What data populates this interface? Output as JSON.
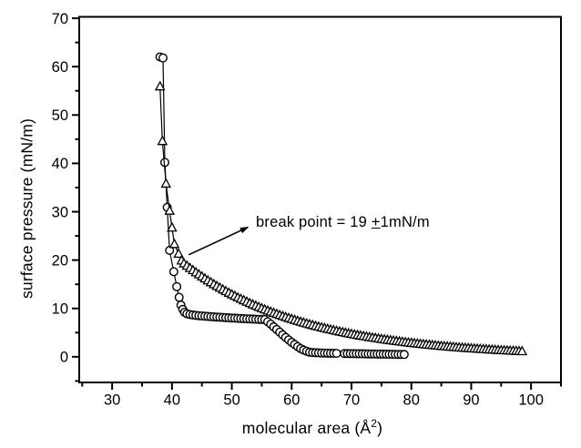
{
  "figure": {
    "background": "#ffffff",
    "ink_color": "#000000"
  },
  "chart_data": {
    "type": "scatter",
    "title": "",
    "xlabel_prefix": "molecular area (Å",
    "xlabel_sup": "2",
    "xlabel_suffix": ")",
    "ylabel": "surface pressure (mN/m)",
    "xlim": [
      24.5,
      105
    ],
    "ylim": [
      -5.3,
      70.3
    ],
    "xticks": [
      30,
      40,
      50,
      60,
      70,
      80,
      90,
      100
    ],
    "yticks": [
      0,
      10,
      20,
      30,
      40,
      50,
      60,
      70
    ],
    "minor_tick_step": 5,
    "grid": false,
    "legend": null,
    "annotation": {
      "display": "break point = 19 ±1mN/m",
      "text_prefix": "break point = 19 ",
      "text_pm": "+",
      "text_suffix": "1mN/m",
      "arrow_from_xy": [
        42.8,
        21.1
      ],
      "arrow_to_xy": [
        52.7,
        26.8
      ]
    },
    "series": [
      {
        "name": "circles-isotherm",
        "marker": "circle",
        "color": "#000000",
        "points": [
          [
            38.0,
            62.0
          ],
          [
            38.5,
            61.8
          ],
          [
            38.8,
            40.2
          ],
          [
            39.2,
            30.9
          ],
          [
            39.6,
            22.0
          ],
          [
            40.3,
            17.6
          ],
          [
            40.8,
            14.5
          ],
          [
            41.2,
            12.3
          ],
          [
            41.5,
            10.7
          ],
          [
            41.8,
            9.8
          ],
          [
            42.1,
            9.2
          ],
          [
            42.5,
            8.9
          ],
          [
            43.0,
            8.75
          ],
          [
            43.5,
            8.65
          ],
          [
            44.0,
            8.57
          ],
          [
            44.5,
            8.5
          ],
          [
            45.0,
            8.45
          ],
          [
            45.5,
            8.4
          ],
          [
            46.0,
            8.35
          ],
          [
            46.5,
            8.3
          ],
          [
            47.0,
            8.26
          ],
          [
            47.5,
            8.22
          ],
          [
            48.0,
            8.18
          ],
          [
            48.5,
            8.14
          ],
          [
            49.0,
            8.1
          ],
          [
            49.5,
            8.06
          ],
          [
            50.0,
            8.02
          ],
          [
            50.5,
            7.99
          ],
          [
            51.0,
            7.95
          ],
          [
            51.5,
            7.92
          ],
          [
            52.0,
            7.89
          ],
          [
            52.5,
            7.86
          ],
          [
            53.0,
            7.83
          ],
          [
            53.5,
            7.8
          ],
          [
            54.0,
            7.77
          ],
          [
            54.5,
            7.74
          ],
          [
            55.0,
            7.72
          ],
          [
            55.5,
            7.7
          ],
          [
            56.0,
            7.25
          ],
          [
            56.5,
            6.75
          ],
          [
            57.0,
            6.2
          ],
          [
            57.5,
            5.65
          ],
          [
            58.0,
            5.1
          ],
          [
            58.5,
            4.55
          ],
          [
            59.0,
            4.0
          ],
          [
            59.5,
            3.5
          ],
          [
            60.0,
            3.0
          ],
          [
            60.5,
            2.55
          ],
          [
            61.0,
            2.1
          ],
          [
            61.5,
            1.7
          ],
          [
            62.0,
            1.4
          ],
          [
            62.5,
            1.15
          ],
          [
            63.0,
            0.95
          ],
          [
            63.5,
            0.88
          ],
          [
            64.0,
            0.84
          ],
          [
            64.5,
            0.81
          ],
          [
            65.0,
            0.79
          ],
          [
            65.5,
            0.77
          ],
          [
            66.0,
            0.75
          ],
          [
            66.5,
            0.73
          ],
          [
            67.0,
            0.72
          ],
          [
            67.5,
            0.71
          ],
          [
            68.8,
            0.68
          ],
          [
            69.3,
            0.67
          ],
          [
            69.8,
            0.66
          ],
          [
            70.3,
            0.65
          ],
          [
            70.8,
            0.64
          ],
          [
            71.3,
            0.63
          ],
          [
            71.8,
            0.62
          ],
          [
            72.3,
            0.61
          ],
          [
            72.8,
            0.6
          ],
          [
            73.3,
            0.59
          ],
          [
            73.8,
            0.58
          ],
          [
            74.3,
            0.57
          ],
          [
            74.8,
            0.56
          ],
          [
            75.3,
            0.55
          ],
          [
            75.8,
            0.54
          ],
          [
            76.3,
            0.53
          ],
          [
            76.8,
            0.52
          ],
          [
            77.3,
            0.51
          ],
          [
            77.8,
            0.5
          ],
          [
            78.3,
            0.49
          ],
          [
            78.8,
            0.48
          ]
        ]
      },
      {
        "name": "triangles-isotherm",
        "marker": "triangle",
        "color": "#000000",
        "points": [
          [
            38.0,
            55.9
          ],
          [
            38.4,
            44.6
          ],
          [
            39.0,
            35.8
          ],
          [
            39.6,
            30.2
          ],
          [
            40.0,
            26.7
          ],
          [
            40.4,
            23.3
          ],
          [
            41.1,
            21.3
          ],
          [
            41.6,
            19.9
          ],
          [
            42.0,
            19.3
          ],
          [
            42.5,
            18.82
          ],
          [
            43.0,
            18.35
          ],
          [
            43.5,
            17.9
          ],
          [
            44.0,
            17.45
          ],
          [
            44.5,
            17.02
          ],
          [
            45.0,
            16.59
          ],
          [
            45.5,
            16.18
          ],
          [
            46.0,
            15.78
          ],
          [
            46.5,
            15.39
          ],
          [
            47.0,
            15.0
          ],
          [
            47.5,
            14.63
          ],
          [
            48.0,
            14.27
          ],
          [
            48.5,
            13.91
          ],
          [
            49.0,
            13.57
          ],
          [
            49.5,
            13.23
          ],
          [
            50.0,
            12.9
          ],
          [
            50.5,
            12.58
          ],
          [
            51.0,
            12.27
          ],
          [
            51.5,
            11.96
          ],
          [
            52.0,
            11.67
          ],
          [
            52.5,
            11.38
          ],
          [
            53.0,
            11.09
          ],
          [
            53.5,
            10.82
          ],
          [
            54.0,
            10.55
          ],
          [
            54.5,
            10.29
          ],
          [
            55.0,
            10.03
          ],
          [
            55.5,
            9.78
          ],
          [
            56.0,
            9.54
          ],
          [
            56.5,
            9.3
          ],
          [
            57.0,
            9.07
          ],
          [
            57.5,
            8.85
          ],
          [
            58.0,
            8.63
          ],
          [
            58.5,
            8.41
          ],
          [
            59.0,
            8.2
          ],
          [
            59.5,
            8.0
          ],
          [
            60.0,
            7.8
          ],
          [
            60.5,
            7.61
          ],
          [
            61.0,
            7.42
          ],
          [
            61.5,
            7.23
          ],
          [
            62.0,
            7.05
          ],
          [
            62.5,
            6.88
          ],
          [
            63.0,
            6.71
          ],
          [
            63.5,
            6.54
          ],
          [
            64.0,
            6.38
          ],
          [
            64.5,
            6.22
          ],
          [
            65.0,
            6.07
          ],
          [
            65.5,
            5.92
          ],
          [
            66.0,
            5.77
          ],
          [
            66.5,
            5.63
          ],
          [
            67.0,
            5.49
          ],
          [
            67.5,
            5.35
          ],
          [
            68.0,
            5.22
          ],
          [
            68.5,
            5.09
          ],
          [
            69.0,
            4.96
          ],
          [
            69.5,
            4.84
          ],
          [
            70.0,
            4.72
          ],
          [
            70.5,
            4.6
          ],
          [
            71.0,
            4.49
          ],
          [
            71.5,
            4.38
          ],
          [
            72.0,
            4.27
          ],
          [
            72.5,
            4.17
          ],
          [
            73.0,
            4.06
          ],
          [
            73.5,
            3.96
          ],
          [
            74.0,
            3.87
          ],
          [
            74.5,
            3.77
          ],
          [
            75.0,
            3.68
          ],
          [
            75.5,
            3.59
          ],
          [
            76.0,
            3.5
          ],
          [
            76.5,
            3.41
          ],
          [
            77.0,
            3.33
          ],
          [
            77.5,
            3.25
          ],
          [
            78.0,
            3.17
          ],
          [
            78.5,
            3.09
          ],
          [
            79.0,
            3.01
          ],
          [
            79.5,
            2.94
          ],
          [
            80.0,
            2.87
          ],
          [
            80.5,
            2.8
          ],
          [
            81.0,
            2.73
          ],
          [
            81.5,
            2.66
          ],
          [
            82.0,
            2.59
          ],
          [
            82.5,
            2.53
          ],
          [
            83.0,
            2.47
          ],
          [
            83.5,
            2.41
          ],
          [
            84.0,
            2.35
          ],
          [
            84.5,
            2.29
          ],
          [
            85.0,
            2.23
          ],
          [
            85.5,
            2.18
          ],
          [
            86.0,
            2.13
          ],
          [
            86.5,
            2.07
          ],
          [
            87.0,
            2.02
          ],
          [
            87.5,
            1.97
          ],
          [
            88.0,
            1.92
          ],
          [
            88.5,
            1.88
          ],
          [
            89.0,
            1.83
          ],
          [
            89.5,
            1.79
          ],
          [
            90.0,
            1.74
          ],
          [
            90.5,
            1.7
          ],
          [
            91.0,
            1.66
          ],
          [
            91.5,
            1.62
          ],
          [
            92.0,
            1.58
          ],
          [
            92.5,
            1.54
          ],
          [
            93.0,
            1.5
          ],
          [
            93.5,
            1.47
          ],
          [
            94.0,
            1.43
          ],
          [
            94.5,
            1.39
          ],
          [
            95.0,
            1.36
          ],
          [
            95.5,
            1.33
          ],
          [
            96.0,
            1.3
          ],
          [
            96.5,
            1.26
          ],
          [
            97.0,
            1.23
          ],
          [
            97.5,
            1.2
          ],
          [
            98.0,
            1.17
          ],
          [
            98.5,
            1.14
          ]
        ]
      }
    ]
  }
}
